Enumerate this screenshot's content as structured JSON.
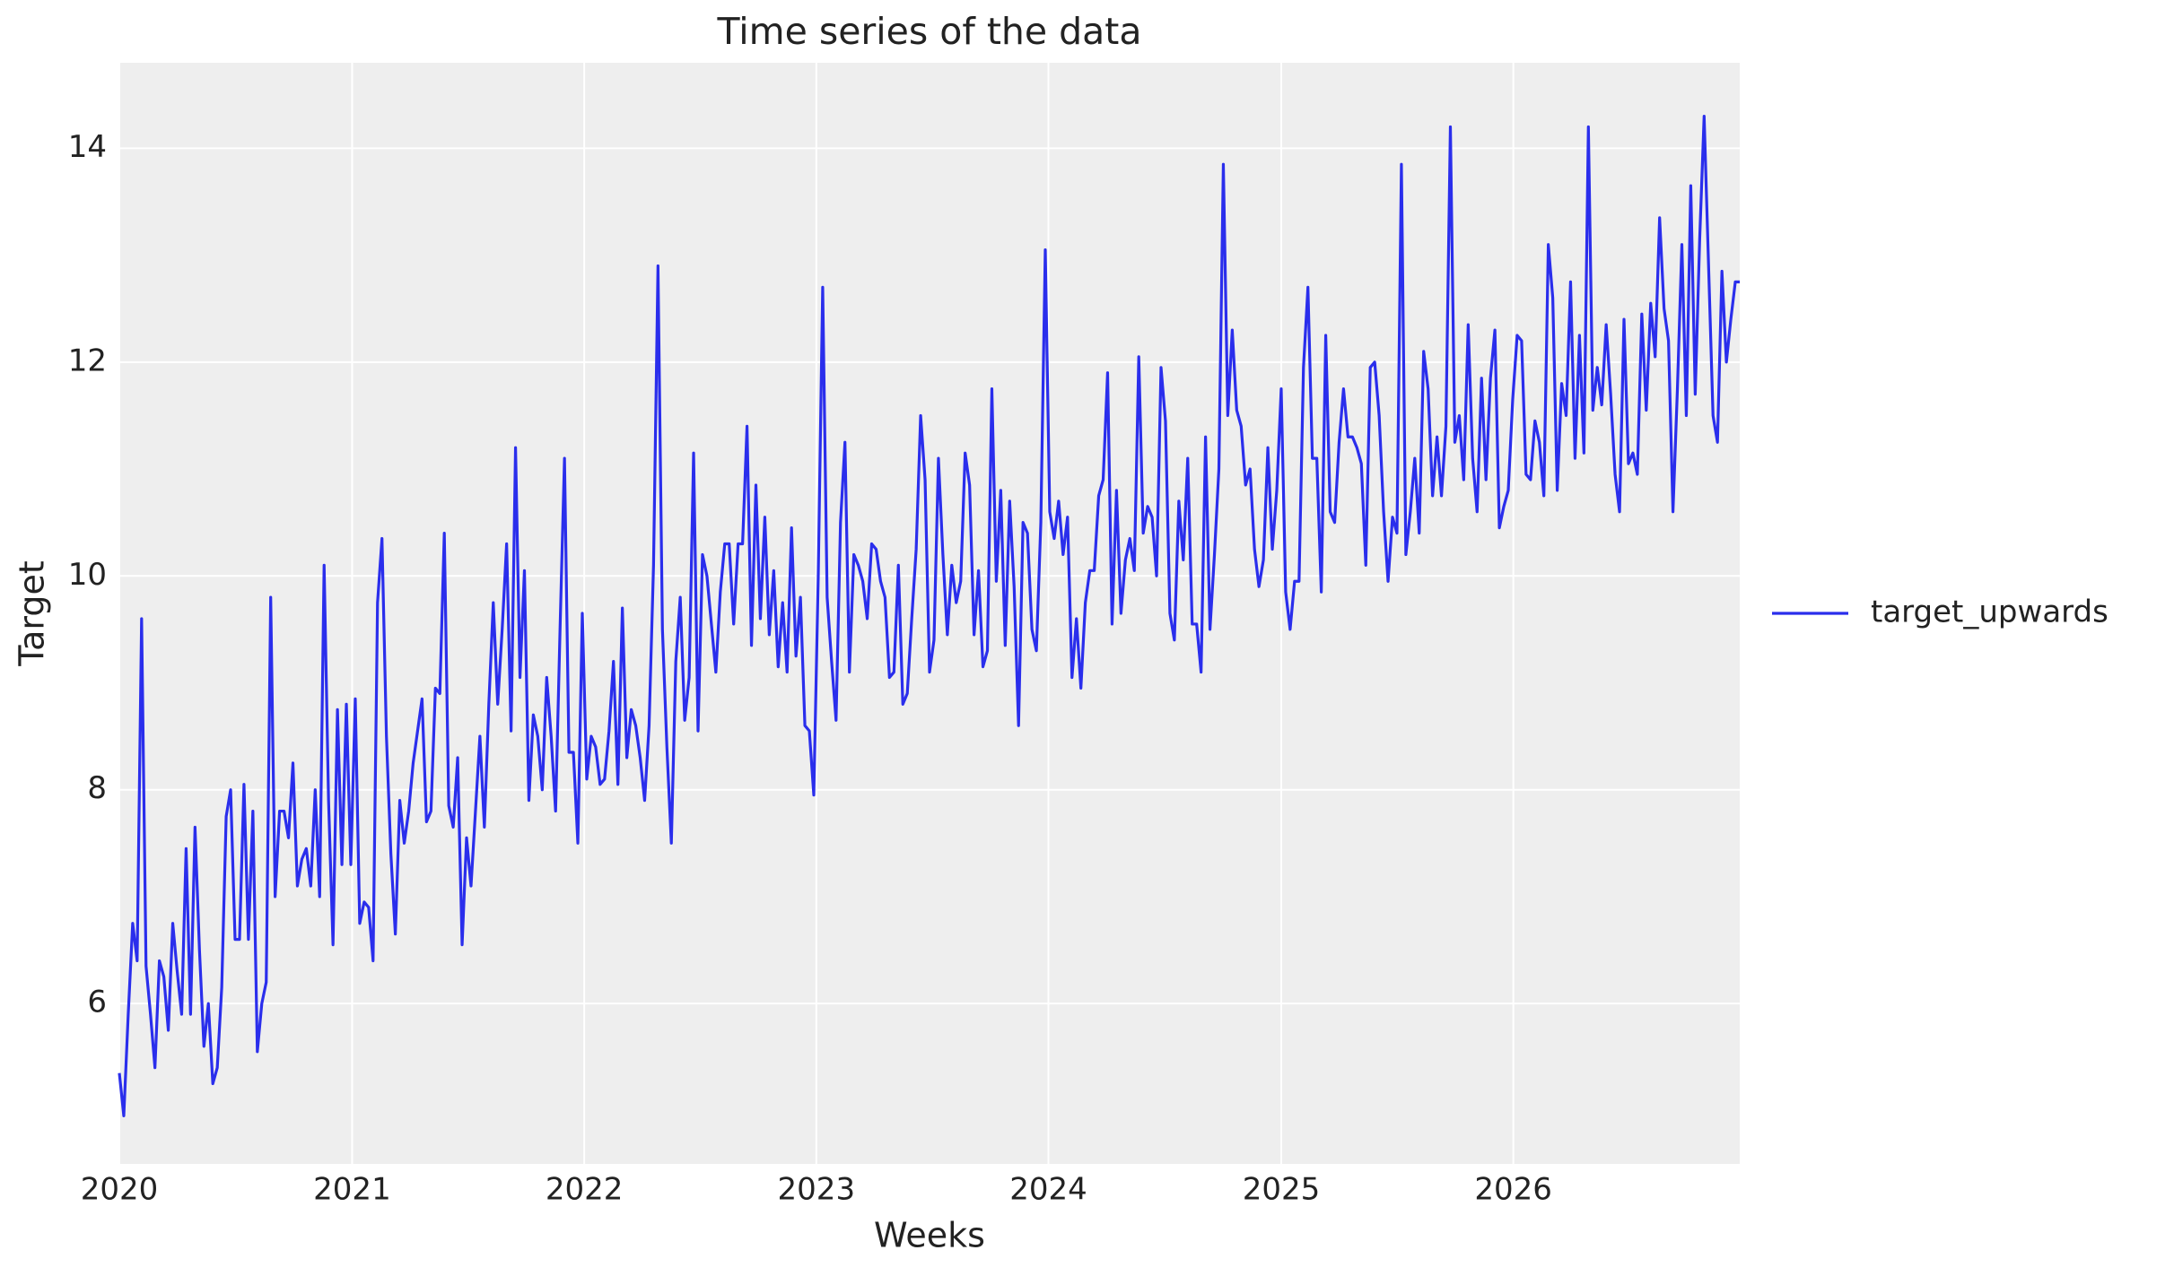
{
  "chart_data": {
    "type": "line",
    "title": "Time series of the data",
    "xlabel": "Weeks",
    "ylabel": "Target",
    "grid": true,
    "legend_position": "right",
    "xlim": [
      0,
      364
    ],
    "ylim": [
      4.5,
      14.8
    ],
    "xticks": [
      {
        "value": 0,
        "label": "2020"
      },
      {
        "value": 52.29,
        "label": "2021"
      },
      {
        "value": 104.43,
        "label": "2022"
      },
      {
        "value": 156.57,
        "label": "2023"
      },
      {
        "value": 208.71,
        "label": "2024"
      },
      {
        "value": 261,
        "label": "2025"
      },
      {
        "value": 313.14,
        "label": "2026"
      }
    ],
    "yticks": [
      6,
      8,
      10,
      12,
      14
    ],
    "x": [
      0,
      1,
      2,
      3,
      4,
      5,
      6,
      7,
      8,
      9,
      10,
      11,
      12,
      13,
      14,
      15,
      16,
      17,
      18,
      19,
      20,
      21,
      22,
      23,
      24,
      25,
      26,
      27,
      28,
      29,
      30,
      31,
      32,
      33,
      34,
      35,
      36,
      37,
      38,
      39,
      40,
      41,
      42,
      43,
      44,
      45,
      46,
      47,
      48,
      49,
      50,
      51,
      52,
      53,
      54,
      55,
      56,
      57,
      58,
      59,
      60,
      61,
      62,
      63,
      64,
      65,
      66,
      67,
      68,
      69,
      70,
      71,
      72,
      73,
      74,
      75,
      76,
      77,
      78,
      79,
      80,
      81,
      82,
      83,
      84,
      85,
      86,
      87,
      88,
      89,
      90,
      91,
      92,
      93,
      94,
      95,
      96,
      97,
      98,
      99,
      100,
      101,
      102,
      103,
      104,
      105,
      106,
      107,
      108,
      109,
      110,
      111,
      112,
      113,
      114,
      115,
      116,
      117,
      118,
      119,
      120,
      121,
      122,
      123,
      124,
      125,
      126,
      127,
      128,
      129,
      130,
      131,
      132,
      133,
      134,
      135,
      136,
      137,
      138,
      139,
      140,
      141,
      142,
      143,
      144,
      145,
      146,
      147,
      148,
      149,
      150,
      151,
      152,
      153,
      154,
      155,
      156,
      157,
      158,
      159,
      160,
      161,
      162,
      163,
      164,
      165,
      166,
      167,
      168,
      169,
      170,
      171,
      172,
      173,
      174,
      175,
      176,
      177,
      178,
      179,
      180,
      181,
      182,
      183,
      184,
      185,
      186,
      187,
      188,
      189,
      190,
      191,
      192,
      193,
      194,
      195,
      196,
      197,
      198,
      199,
      200,
      201,
      202,
      203,
      204,
      205,
      206,
      207,
      208,
      209,
      210,
      211,
      212,
      213,
      214,
      215,
      216,
      217,
      218,
      219,
      220,
      221,
      222,
      223,
      224,
      225,
      226,
      227,
      228,
      229,
      230,
      231,
      232,
      233,
      234,
      235,
      236,
      237,
      238,
      239,
      240,
      241,
      242,
      243,
      244,
      245,
      246,
      247,
      248,
      249,
      250,
      251,
      252,
      253,
      254,
      255,
      256,
      257,
      258,
      259,
      260,
      261,
      262,
      263,
      264,
      265,
      266,
      267,
      268,
      269,
      270,
      271,
      272,
      273,
      274,
      275,
      276,
      277,
      278,
      279,
      280,
      281,
      282,
      283,
      284,
      285,
      286,
      287,
      288,
      289,
      290,
      291,
      292,
      293,
      294,
      295,
      296,
      297,
      298,
      299,
      300,
      301,
      302,
      303,
      304,
      305,
      306,
      307,
      308,
      309,
      310,
      311,
      312,
      313,
      314,
      315,
      316,
      317,
      318,
      319,
      320,
      321,
      322,
      323,
      324,
      325,
      326,
      327,
      328,
      329,
      330,
      331,
      332,
      333,
      334,
      335,
      336,
      337,
      338,
      339,
      340,
      341,
      342,
      343,
      344,
      345,
      346,
      347,
      348,
      349,
      350,
      351,
      352,
      353,
      354,
      355,
      356,
      357,
      358,
      359,
      360,
      361,
      362,
      363,
      364
    ],
    "series": [
      {
        "name": "target_upwards",
        "color": "#2a2eec",
        "values": [
          5.35,
          4.95,
          5.9,
          6.75,
          6.4,
          9.6,
          6.35,
          5.9,
          5.4,
          6.4,
          6.25,
          5.75,
          6.75,
          6.3,
          5.9,
          7.45,
          5.9,
          7.65,
          6.5,
          5.6,
          6.0,
          5.25,
          5.4,
          6.15,
          7.75,
          8.0,
          6.6,
          6.6,
          8.05,
          6.6,
          7.8,
          5.55,
          6.0,
          6.2,
          9.8,
          7.0,
          7.8,
          7.8,
          7.55,
          8.25,
          7.1,
          7.35,
          7.45,
          7.1,
          8.0,
          7.0,
          10.1,
          7.9,
          6.55,
          8.75,
          7.3,
          8.8,
          7.3,
          8.85,
          6.75,
          6.95,
          6.9,
          6.4,
          9.75,
          10.35,
          8.5,
          7.4,
          6.65,
          7.9,
          7.5,
          7.8,
          8.25,
          8.55,
          8.85,
          7.7,
          7.8,
          8.95,
          8.9,
          10.4,
          7.85,
          7.65,
          8.3,
          6.55,
          7.55,
          7.1,
          7.8,
          8.5,
          7.65,
          8.8,
          9.75,
          8.8,
          9.5,
          10.3,
          8.55,
          11.2,
          9.05,
          10.05,
          7.9,
          8.7,
          8.5,
          8.0,
          9.05,
          8.5,
          7.8,
          9.5,
          11.1,
          8.35,
          8.35,
          7.5,
          9.65,
          8.1,
          8.5,
          8.4,
          8.05,
          8.1,
          8.55,
          9.2,
          8.05,
          9.7,
          8.3,
          8.75,
          8.6,
          8.3,
          7.9,
          8.6,
          10.1,
          12.9,
          9.5,
          8.4,
          7.5,
          9.2,
          9.8,
          8.65,
          9.05,
          11.15,
          8.55,
          10.2,
          10.0,
          9.55,
          9.1,
          9.85,
          10.3,
          10.3,
          9.55,
          10.3,
          10.3,
          11.4,
          9.35,
          10.85,
          9.6,
          10.55,
          9.45,
          10.05,
          9.15,
          9.75,
          9.1,
          10.45,
          9.25,
          9.8,
          8.6,
          8.55,
          7.95,
          10.0,
          12.7,
          9.8,
          9.2,
          8.65,
          10.5,
          11.25,
          9.1,
          10.2,
          10.1,
          9.95,
          9.6,
          10.3,
          10.25,
          9.95,
          9.8,
          9.05,
          9.1,
          10.1,
          8.8,
          8.9,
          9.6,
          10.25,
          11.5,
          10.9,
          9.1,
          9.4,
          11.1,
          10.2,
          9.45,
          10.1,
          9.75,
          9.95,
          11.15,
          10.85,
          9.45,
          10.05,
          9.15,
          9.3,
          11.75,
          9.95,
          10.8,
          9.35,
          10.7,
          9.9,
          8.6,
          10.5,
          10.4,
          9.5,
          9.3,
          10.5,
          13.05,
          10.6,
          10.35,
          10.7,
          10.2,
          10.55,
          9.05,
          9.6,
          8.95,
          9.75,
          10.05,
          10.05,
          10.75,
          10.9,
          11.9,
          9.55,
          10.8,
          9.65,
          10.15,
          10.35,
          10.05,
          12.05,
          10.4,
          10.65,
          10.55,
          10.0,
          11.95,
          11.45,
          9.65,
          9.4,
          10.7,
          10.15,
          11.1,
          9.55,
          9.55,
          9.1,
          11.3,
          9.5,
          10.2,
          11.0,
          13.85,
          11.5,
          12.3,
          11.55,
          11.4,
          10.85,
          11.0,
          10.25,
          9.9,
          10.15,
          11.2,
          10.25,
          10.8,
          11.75,
          9.85,
          9.5,
          9.95,
          9.95,
          11.95,
          12.7,
          11.1,
          11.1,
          9.85,
          12.25,
          10.6,
          10.5,
          11.25,
          11.75,
          11.3,
          11.3,
          11.2,
          11.05,
          10.1,
          11.95,
          12.0,
          11.5,
          10.6,
          9.95,
          10.55,
          10.4,
          13.85,
          10.2,
          10.6,
          11.1,
          10.4,
          12.1,
          11.75,
          10.75,
          11.3,
          10.75,
          11.4,
          14.2,
          11.25,
          11.5,
          10.9,
          12.35,
          11.1,
          10.6,
          11.85,
          10.9,
          11.85,
          12.3,
          10.45,
          10.65,
          10.8,
          11.65,
          12.25,
          12.2,
          10.95,
          10.9,
          11.45,
          11.25,
          10.75,
          13.1,
          12.6,
          10.8,
          11.8,
          11.5,
          12.75,
          11.1,
          12.25,
          11.15,
          14.2,
          11.55,
          11.95,
          11.6,
          12.35,
          11.7,
          10.95,
          10.6,
          12.4,
          11.05,
          11.15,
          10.95,
          12.45,
          11.55,
          12.55,
          12.05,
          13.35,
          12.5,
          12.2,
          10.6,
          11.75,
          13.1,
          11.5,
          13.65,
          11.7,
          13.15,
          14.3,
          12.9,
          11.5,
          11.25,
          12.85,
          12.0,
          12.4,
          12.75,
          12.75
        ]
      }
    ]
  }
}
